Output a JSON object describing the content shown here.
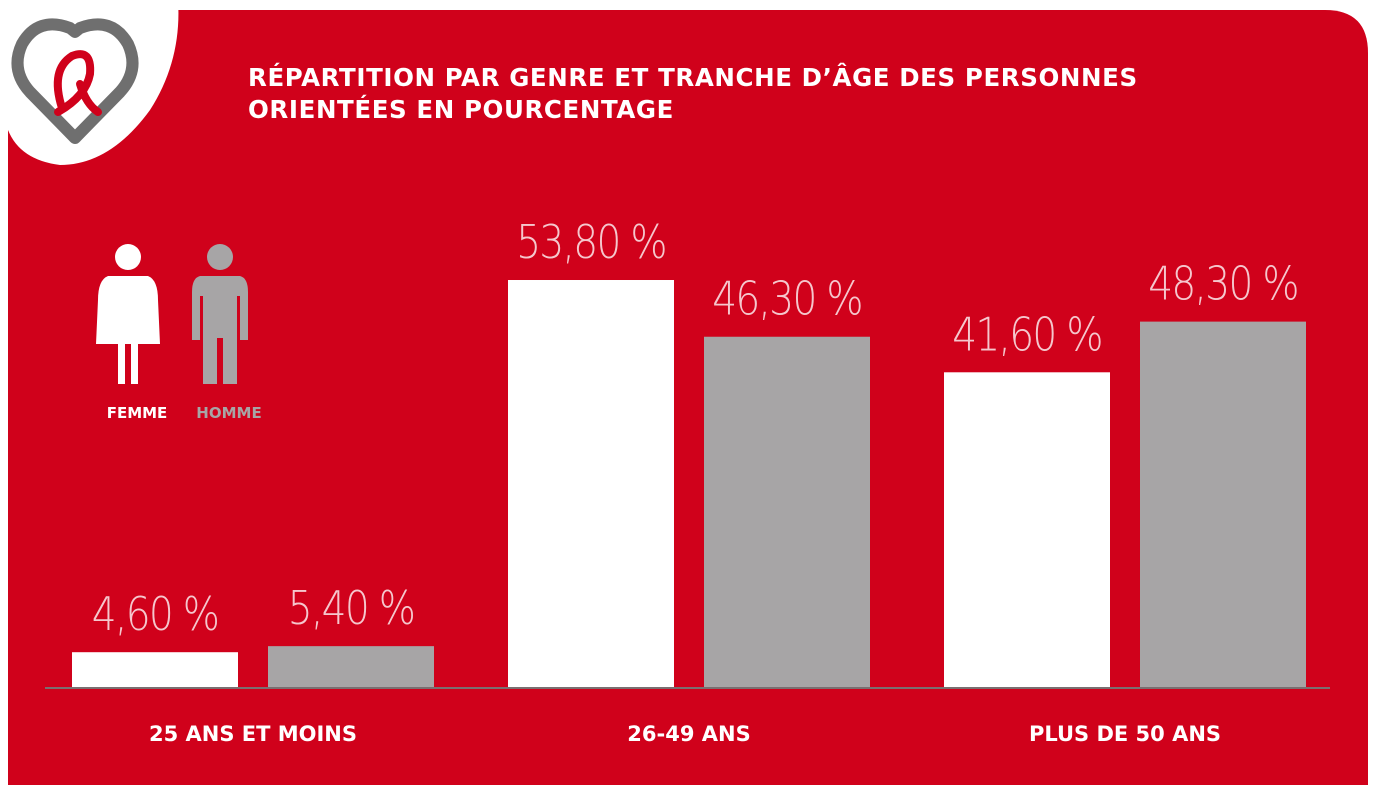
{
  "chart_data": {
    "type": "bar",
    "title": "RÉPARTITION PAR GENRE ET TRANCHE D’ÂGE DES PERSONNES ORIENTÉES EN POURCENTAGE",
    "categories": [
      "25 ANS ET MOINS",
      "26-49 ANS",
      "PLUS DE 50 ANS"
    ],
    "series": [
      {
        "name": "FEMME",
        "color": "#ffffff",
        "values": [
          4.6,
          53.8,
          41.6
        ],
        "value_labels": [
          "4,60 %",
          "53,80 %",
          "41,60 %"
        ]
      },
      {
        "name": "HOMME",
        "color": "#a7a5a6",
        "values": [
          5.4,
          46.3,
          48.3
        ],
        "value_labels": [
          "5,40 %",
          "46,30 %",
          "48,30 %"
        ]
      }
    ]
  }
}
